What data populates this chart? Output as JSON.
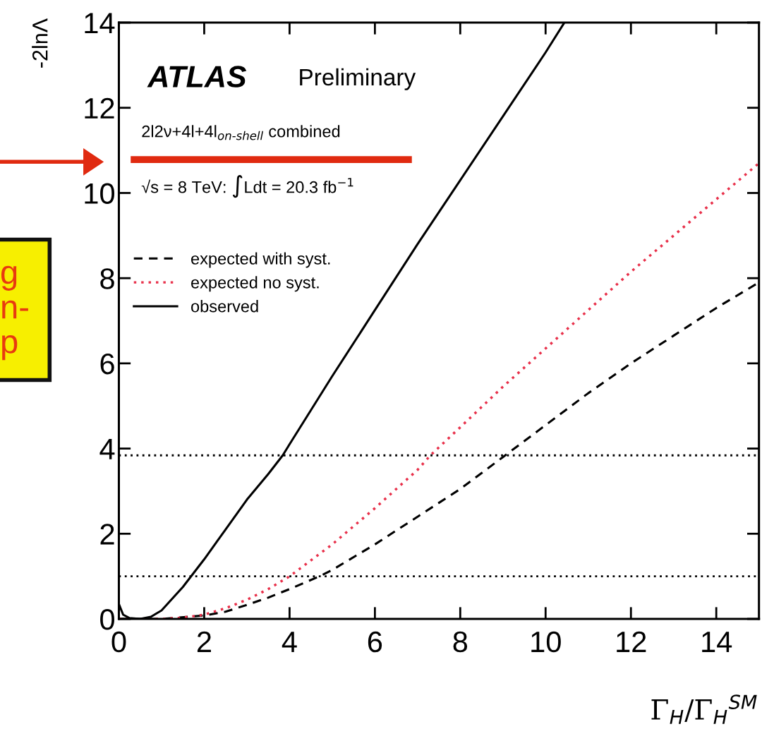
{
  "chart_data": {
    "type": "line",
    "xlabel": "Γ$_{H}$/Γ$_{H}$$^{SM}$",
    "ylabel": "-2lnΛ",
    "xlim": [
      0,
      15
    ],
    "ylim": [
      0,
      14
    ],
    "xticks": [
      0,
      2,
      4,
      6,
      8,
      10,
      12,
      14
    ],
    "yticks": [
      0,
      2,
      4,
      6,
      8,
      10,
      12,
      14
    ],
    "grid": false,
    "legend": "top left",
    "marker": "none",
    "series": [
      {
        "name": "expected with syst.",
        "color": "#000000",
        "line_style": "dashed",
        "x": [
          0,
          1,
          2,
          2.5,
          3,
          3.5,
          4,
          4.7,
          5,
          6,
          7,
          8,
          9,
          10,
          11,
          12,
          13,
          14,
          15
        ],
        "values": [
          0,
          0,
          0.08,
          0.17,
          0.33,
          0.5,
          0.7,
          1.0,
          1.15,
          1.75,
          2.4,
          3.05,
          3.8,
          4.55,
          5.3,
          6.0,
          6.65,
          7.3,
          7.9
        ]
      },
      {
        "name": "expected no syst.",
        "color": "#e8304a",
        "line_style": "dotted",
        "x": [
          0,
          1,
          1.5,
          2,
          2.5,
          3,
          3.5,
          4,
          5,
          6,
          7,
          7.3,
          8,
          9,
          10,
          11,
          12,
          13,
          14,
          15
        ],
        "values": [
          0,
          0,
          0.03,
          0.1,
          0.25,
          0.45,
          0.7,
          1.0,
          1.75,
          2.6,
          3.5,
          3.84,
          4.5,
          5.45,
          6.35,
          7.25,
          8.15,
          9.0,
          9.85,
          10.7
        ]
      },
      {
        "name": "observed",
        "color": "#000000",
        "line_style": "solid",
        "x": [
          0,
          0.1,
          0.25,
          0.5,
          0.75,
          1,
          1.5,
          2,
          2.5,
          3,
          3.5,
          3.84,
          4,
          5,
          6,
          7,
          8,
          9,
          10,
          10.44
        ],
        "values": [
          0.35,
          0.1,
          0.02,
          0,
          0.05,
          0.2,
          0.75,
          1.4,
          2.1,
          2.8,
          3.4,
          3.84,
          4.1,
          5.7,
          7.25,
          8.8,
          10.3,
          11.8,
          13.3,
          14
        ]
      }
    ],
    "ref_lines": [
      {
        "axis": "y",
        "value": 1,
        "color": "#000000",
        "line_style": "dotted"
      },
      {
        "axis": "y",
        "value": 3.84,
        "color": "#000000",
        "line_style": "dotted"
      }
    ],
    "annotations": [
      "ATLAS",
      "Preliminary",
      "2l2ν+4l+4l$_{on-shell}$ combined",
      "√s = 8 TeV: ∫Ldt = 20.3 fb$^{−1}$",
      "g\nn-\np"
    ]
  }
}
